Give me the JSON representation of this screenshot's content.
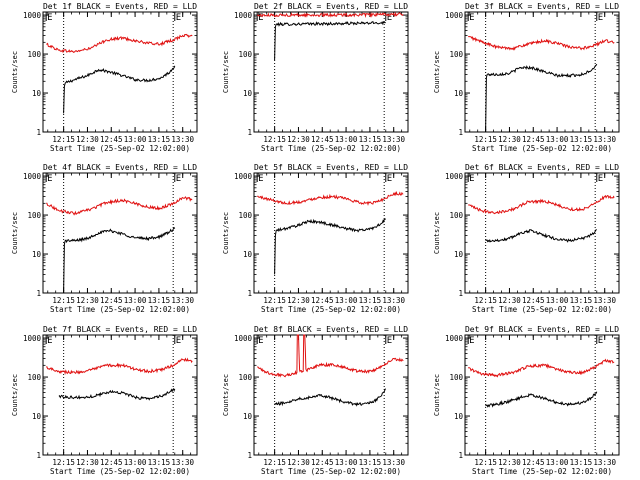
{
  "figure": {
    "background": "#ffffff",
    "events_color": "#000000",
    "lld_color": "#e01010"
  },
  "chart_data": [
    {
      "type": "line",
      "title": "Det 1f BLACK = Events, RED = LLD",
      "xlabel": "Start Time (25-Sep-02 12:02:00)",
      "ylabel": "Counts/sec",
      "x_ticks": [
        "12:15",
        "12:30",
        "12:45",
        "13:00",
        "13:15",
        "13:30"
      ],
      "x_tick_minutes": [
        13,
        28,
        43,
        58,
        73,
        88
      ],
      "y_ticks": [
        "1",
        "10",
        "100",
        "1000"
      ],
      "ylim": [
        1,
        1200
      ],
      "y_scale": "log",
      "xlim": [
        0,
        97
      ],
      "markers": [
        {
          "label": "E",
          "x": 2
        },
        {
          "label": "E",
          "x": 83
        }
      ],
      "dotted_lines_x": [
        13,
        82
      ],
      "series": [
        {
          "color": "#000000",
          "x": [
            13,
            13.5,
            14,
            20,
            28,
            35,
            42,
            50,
            58,
            66,
            74,
            80,
            83
          ],
          "y": [
            3,
            15,
            18,
            22,
            28,
            40,
            35,
            28,
            22,
            21,
            24,
            35,
            50
          ]
        },
        {
          "color": "#e01010",
          "x": [
            2,
            10,
            20,
            30,
            40,
            50,
            58,
            66,
            74,
            82,
            88,
            94
          ],
          "y": [
            180,
            125,
            115,
            140,
            230,
            260,
            220,
            190,
            180,
            230,
            300,
            290
          ]
        }
      ]
    },
    {
      "type": "line",
      "title": "Det 2f BLACK = Events, RED = LLD",
      "xlabel": "Start Time (25-Sep-02 12:02:00)",
      "ylabel": "Counts/sec",
      "x_ticks": [
        "12:15",
        "12:30",
        "12:45",
        "13:00",
        "13:15",
        "13:30"
      ],
      "x_tick_minutes": [
        13,
        28,
        43,
        58,
        73,
        88
      ],
      "y_ticks": [
        "1",
        "10",
        "100",
        "1000"
      ],
      "ylim": [
        1,
        1200
      ],
      "y_scale": "log",
      "xlim": [
        0,
        97
      ],
      "markers": [
        {
          "label": "E",
          "x": 2
        },
        {
          "label": "E",
          "x": 83
        }
      ],
      "dotted_lines_x": [
        13,
        82
      ],
      "series": [
        {
          "color": "#000000",
          "x": [
            13,
            13.5,
            14,
            30,
            50,
            70,
            82,
            83
          ],
          "y": [
            70,
            500,
            580,
            590,
            600,
            620,
            640,
            640
          ]
        },
        {
          "color": "#e01010",
          "x": [
            2,
            20,
            40,
            60,
            80,
            94
          ],
          "y": [
            980,
            1000,
            1000,
            1010,
            1020,
            1050
          ]
        }
      ]
    },
    {
      "type": "line",
      "title": "Det 3f BLACK = Events, RED = LLD",
      "xlabel": "Start Time (25-Sep-02 12:02:00)",
      "ylabel": "Counts/sec",
      "x_ticks": [
        "12:15",
        "12:30",
        "12:45",
        "13:00",
        "13:15",
        "13:30"
      ],
      "x_tick_minutes": [
        13,
        28,
        43,
        58,
        73,
        88
      ],
      "y_ticks": [
        "1",
        "10",
        "100",
        "1000"
      ],
      "ylim": [
        1,
        1200
      ],
      "y_scale": "log",
      "xlim": [
        0,
        97
      ],
      "markers": [
        {
          "label": "E",
          "x": 2
        },
        {
          "label": "E",
          "x": 83
        }
      ],
      "dotted_lines_x": [
        13,
        82
      ],
      "series": [
        {
          "color": "#000000",
          "x": [
            13,
            13.5,
            14,
            20,
            28,
            35,
            42,
            50,
            58,
            66,
            74,
            80,
            83
          ],
          "y": [
            1,
            25,
            30,
            30,
            32,
            45,
            45,
            35,
            28,
            28,
            30,
            40,
            55
          ]
        },
        {
          "color": "#e01010",
          "x": [
            2,
            10,
            20,
            30,
            40,
            50,
            58,
            66,
            74,
            82,
            88,
            94
          ],
          "y": [
            280,
            210,
            150,
            140,
            180,
            220,
            190,
            150,
            140,
            170,
            220,
            200
          ]
        }
      ]
    },
    {
      "type": "line",
      "title": "Det 4f BLACK = Events, RED = LLD",
      "xlabel": "Start Time (25-Sep-02 12:02:00)",
      "ylabel": "Counts/sec",
      "x_ticks": [
        "12:15",
        "12:30",
        "12:45",
        "13:00",
        "13:15",
        "13:30"
      ],
      "x_tick_minutes": [
        13,
        28,
        43,
        58,
        73,
        88
      ],
      "y_ticks": [
        "1",
        "10",
        "100",
        "1000"
      ],
      "ylim": [
        1,
        1200
      ],
      "y_scale": "log",
      "xlim": [
        0,
        97
      ],
      "markers": [
        {
          "label": "E",
          "x": 2
        },
        {
          "label": "E",
          "x": 83
        }
      ],
      "dotted_lines_x": [
        13,
        82
      ],
      "series": [
        {
          "color": "#000000",
          "x": [
            13,
            13.5,
            14,
            20,
            28,
            35,
            42,
            50,
            58,
            66,
            74,
            80,
            83
          ],
          "y": [
            1,
            18,
            22,
            22,
            25,
            35,
            40,
            33,
            26,
            25,
            28,
            38,
            45
          ]
        },
        {
          "color": "#e01010",
          "x": [
            2,
            10,
            20,
            30,
            40,
            50,
            58,
            66,
            74,
            82,
            88,
            94
          ],
          "y": [
            200,
            130,
            110,
            140,
            210,
            240,
            200,
            160,
            150,
            200,
            280,
            250
          ]
        }
      ]
    },
    {
      "type": "line",
      "title": "Det 5f BLACK = Events, RED = LLD",
      "xlabel": "Start Time (25-Sep-02 12:02:00)",
      "ylabel": "Counts/sec",
      "x_ticks": [
        "12:15",
        "12:30",
        "12:45",
        "13:00",
        "13:15",
        "13:30"
      ],
      "x_tick_minutes": [
        13,
        28,
        43,
        58,
        73,
        88
      ],
      "y_ticks": [
        "1",
        "10",
        "100",
        "1000"
      ],
      "ylim": [
        1,
        1200
      ],
      "y_scale": "log",
      "xlim": [
        0,
        97
      ],
      "markers": [
        {
          "label": "E",
          "x": 2
        },
        {
          "label": "E",
          "x": 83
        }
      ],
      "dotted_lines_x": [
        13,
        82
      ],
      "series": [
        {
          "color": "#000000",
          "x": [
            13,
            13.5,
            14,
            20,
            28,
            35,
            42,
            50,
            58,
            66,
            74,
            80,
            83
          ],
          "y": [
            3,
            30,
            40,
            45,
            55,
            70,
            65,
            55,
            45,
            40,
            45,
            60,
            80
          ]
        },
        {
          "color": "#e01010",
          "x": [
            2,
            10,
            20,
            30,
            40,
            50,
            58,
            66,
            74,
            82,
            88,
            94
          ],
          "y": [
            300,
            250,
            200,
            220,
            280,
            300,
            260,
            210,
            200,
            260,
            360,
            340
          ]
        }
      ]
    },
    {
      "type": "line",
      "title": "Det 6f BLACK = Events, RED = LLD",
      "xlabel": "Start Time (25-Sep-02 12:02:00)",
      "ylabel": "Counts/sec",
      "x_ticks": [
        "12:15",
        "12:30",
        "12:45",
        "13:00",
        "13:15",
        "13:30"
      ],
      "x_tick_minutes": [
        13,
        28,
        43,
        58,
        73,
        88
      ],
      "y_ticks": [
        "1",
        "10",
        "100",
        "1000"
      ],
      "ylim": [
        1,
        1200
      ],
      "y_scale": "log",
      "xlim": [
        0,
        97
      ],
      "markers": [
        {
          "label": "E",
          "x": 2
        },
        {
          "label": "E",
          "x": 83
        }
      ],
      "dotted_lines_x": [
        13,
        82
      ],
      "series": [
        {
          "color": "#000000",
          "x": [
            13,
            20,
            28,
            35,
            42,
            50,
            58,
            66,
            74,
            80,
            83
          ],
          "y": [
            22,
            22,
            25,
            35,
            40,
            30,
            24,
            22,
            25,
            32,
            42
          ]
        },
        {
          "color": "#e01010",
          "x": [
            2,
            10,
            20,
            30,
            40,
            50,
            58,
            66,
            74,
            82,
            88,
            94
          ],
          "y": [
            180,
            130,
            115,
            140,
            220,
            230,
            180,
            140,
            140,
            200,
            300,
            280
          ]
        }
      ]
    },
    {
      "type": "line",
      "title": "Det 7f BLACK = Events, RED = LLD",
      "xlabel": "Start Time (25-Sep-02 12:02:00)",
      "ylabel": "Counts/sec",
      "x_ticks": [
        "12:15",
        "12:30",
        "12:45",
        "13:00",
        "13:15",
        "13:30"
      ],
      "x_tick_minutes": [
        13,
        28,
        43,
        58,
        73,
        88
      ],
      "y_ticks": [
        "1",
        "10",
        "100",
        "1000"
      ],
      "ylim": [
        1,
        1200
      ],
      "y_scale": "log",
      "xlim": [
        0,
        97
      ],
      "markers": [
        {
          "label": "E",
          "x": 2
        },
        {
          "label": "E",
          "x": 83
        }
      ],
      "dotted_lines_x": [
        13,
        82
      ],
      "series": [
        {
          "color": "#000000",
          "x": [
            10,
            20,
            28,
            35,
            42,
            50,
            58,
            66,
            74,
            80,
            83
          ],
          "y": [
            32,
            30,
            30,
            35,
            42,
            40,
            30,
            28,
            32,
            42,
            50
          ]
        },
        {
          "color": "#e01010",
          "x": [
            2,
            10,
            20,
            30,
            40,
            50,
            58,
            66,
            74,
            82,
            88,
            94
          ],
          "y": [
            180,
            140,
            130,
            150,
            200,
            200,
            160,
            140,
            150,
            200,
            280,
            260
          ]
        }
      ]
    },
    {
      "type": "line",
      "title": "Det 8f BLACK = Events, RED = LLD",
      "xlabel": "Start Time (25-Sep-02 12:02:00)",
      "ylabel": "Counts/sec",
      "x_ticks": [
        "12:15",
        "12:30",
        "12:45",
        "13:00",
        "13:15",
        "13:30"
      ],
      "x_tick_minutes": [
        13,
        28,
        43,
        58,
        73,
        88
      ],
      "y_ticks": [
        "1",
        "10",
        "100",
        "1000"
      ],
      "ylim": [
        1,
        1200
      ],
      "y_scale": "log",
      "xlim": [
        0,
        97
      ],
      "markers": [
        {
          "label": "E",
          "x": 2
        },
        {
          "label": "E",
          "x": 83
        }
      ],
      "dotted_lines_x": [
        13,
        82
      ],
      "series": [
        {
          "color": "#000000",
          "x": [
            13,
            20,
            28,
            35,
            42,
            50,
            58,
            66,
            74,
            80,
            83
          ],
          "y": [
            20,
            22,
            28,
            30,
            35,
            28,
            22,
            20,
            22,
            32,
            50
          ]
        },
        {
          "color": "#e01010",
          "x": [
            2,
            10,
            20,
            27,
            27.3,
            28,
            28.7,
            29,
            31,
            31.3,
            32,
            32.7,
            33,
            40,
            50,
            58,
            66,
            74,
            82,
            88,
            94
          ],
          "y": [
            180,
            120,
            110,
            130,
            1200,
            1200,
            150,
            140,
            140,
            1200,
            1200,
            160,
            150,
            200,
            210,
            170,
            140,
            140,
            200,
            300,
            260
          ]
        }
      ]
    },
    {
      "type": "line",
      "title": "Det 9f BLACK = Events, RED = LLD",
      "xlabel": "Start Time (25-Sep-02 12:02:00)",
      "ylabel": "Counts/sec",
      "x_ticks": [
        "12:15",
        "12:30",
        "12:45",
        "13:00",
        "13:15",
        "13:30"
      ],
      "x_tick_minutes": [
        13,
        28,
        43,
        58,
        73,
        88
      ],
      "y_ticks": [
        "1",
        "10",
        "100",
        "1000"
      ],
      "ylim": [
        1,
        1200
      ],
      "y_scale": "log",
      "xlim": [
        0,
        97
      ],
      "markers": [
        {
          "label": "E",
          "x": 2
        },
        {
          "label": "E",
          "x": 83
        }
      ],
      "dotted_lines_x": [
        13,
        82
      ],
      "series": [
        {
          "color": "#000000",
          "x": [
            13,
            20,
            28,
            35,
            42,
            50,
            58,
            66,
            74,
            80,
            83
          ],
          "y": [
            18,
            20,
            24,
            30,
            35,
            28,
            22,
            20,
            22,
            30,
            42
          ]
        },
        {
          "color": "#e01010",
          "x": [
            2,
            10,
            20,
            30,
            40,
            50,
            58,
            66,
            74,
            82,
            88,
            94
          ],
          "y": [
            170,
            120,
            110,
            130,
            190,
            200,
            160,
            130,
            130,
            180,
            260,
            240
          ]
        }
      ]
    }
  ]
}
